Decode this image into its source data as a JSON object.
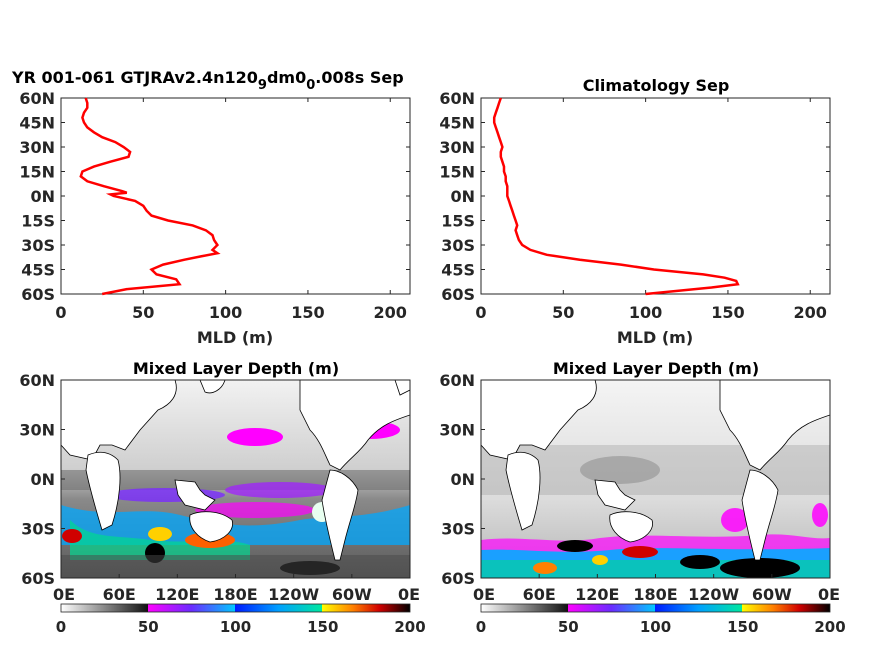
{
  "chart_data": [
    {
      "type": "line",
      "title_parts": {
        "a": "YR 001-061 GTJRAv2.4n120",
        "b": "9",
        "c": "dm0",
        "d": "0",
        "e": ".008s Sep"
      },
      "xlabel": "MLD (m)",
      "xlim": [
        0,
        212
      ],
      "ylim": [
        -60,
        60
      ],
      "xticks": [
        "0",
        "50",
        "100",
        "150",
        "200"
      ],
      "yticks": [
        "60N",
        "45N",
        "30N",
        "15N",
        "0N",
        "15S",
        "30S",
        "45S",
        "60S"
      ],
      "color": "#ff0000",
      "series": [
        {
          "lat": [
            60,
            57,
            54,
            51,
            48,
            45,
            42,
            39,
            36,
            33,
            30,
            27,
            24,
            21,
            18,
            15,
            12,
            9,
            6,
            3,
            2,
            1,
            0,
            -3,
            -6,
            -9,
            -12,
            -15,
            -18,
            -21,
            -24,
            -27,
            -30,
            -33,
            -35,
            -37,
            -39,
            -42,
            -45,
            -48,
            -51,
            -54,
            -57,
            -60
          ],
          "mld": [
            15,
            16,
            16,
            14,
            13,
            14,
            16,
            20,
            25,
            33,
            38,
            42,
            41,
            30,
            20,
            13,
            12,
            16,
            26,
            37,
            40,
            30,
            32,
            45,
            50,
            52,
            55,
            65,
            80,
            88,
            92,
            93,
            95,
            92,
            95,
            85,
            75,
            62,
            55,
            58,
            70,
            72,
            40,
            25
          ]
        }
      ]
    },
    {
      "type": "line",
      "title": "Climatology Sep",
      "xlabel": "MLD (m)",
      "xlim": [
        0,
        212
      ],
      "ylim": [
        -60,
        60
      ],
      "xticks": [
        "0",
        "50",
        "100",
        "150",
        "200"
      ],
      "yticks": [
        "60N",
        "45N",
        "30N",
        "15N",
        "0N",
        "15S",
        "30S",
        "45S",
        "60S"
      ],
      "color": "#ff0000",
      "series": [
        {
          "lat": [
            60,
            57,
            54,
            51,
            48,
            45,
            42,
            39,
            36,
            33,
            30,
            27,
            24,
            21,
            18,
            15,
            12,
            9,
            6,
            3,
            0,
            -3,
            -6,
            -9,
            -12,
            -15,
            -18,
            -21,
            -24,
            -27,
            -30,
            -33,
            -36,
            -39,
            -42,
            -45,
            -48,
            -50,
            -52,
            -54,
            -56,
            -58,
            -60
          ],
          "mld": [
            12,
            11,
            10,
            9,
            8,
            8,
            9,
            10,
            11,
            12,
            13,
            12,
            12,
            13,
            14,
            14,
            15,
            15,
            16,
            16,
            16,
            17,
            18,
            19,
            20,
            21,
            22,
            21,
            22,
            23,
            25,
            30,
            40,
            60,
            85,
            105,
            135,
            148,
            155,
            156,
            140,
            120,
            100
          ]
        }
      ]
    },
    {
      "type": "heatmap",
      "title": "Mixed Layer Depth (m)",
      "xticks": [
        "0E",
        "60E",
        "120E",
        "180E",
        "120W",
        "60W",
        "0E"
      ],
      "yticks": [
        "60N",
        "30N",
        "0N",
        "30S",
        "60S"
      ],
      "colorbar": {
        "ticks": [
          "0",
          "50",
          "100",
          "150",
          "200"
        ],
        "range": [
          0,
          200
        ]
      }
    },
    {
      "type": "heatmap",
      "title": "Mixed Layer Depth (m)",
      "xticks": [
        "0E",
        "60E",
        "120E",
        "180E",
        "120W",
        "60W",
        "0E"
      ],
      "yticks": [
        "60N",
        "30N",
        "0N",
        "30S",
        "60S"
      ],
      "colorbar": {
        "ticks": [
          "0",
          "50",
          "100",
          "150",
          "200"
        ],
        "range": [
          0,
          200
        ]
      }
    }
  ]
}
